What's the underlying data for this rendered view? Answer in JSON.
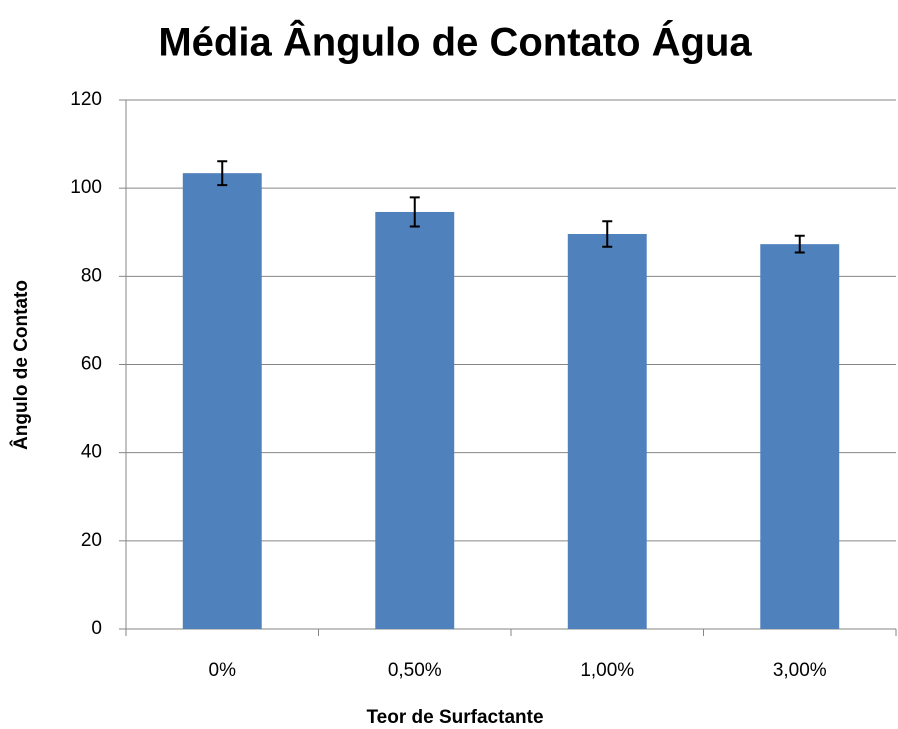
{
  "chart_data": {
    "type": "bar",
    "title": "Média Ângulo de Contato Água",
    "x_label": "Teor de Surfactante",
    "y_label": "Ângulo de Contato",
    "categories": [
      "0%",
      "0,50%",
      "1,00%",
      "3,00%"
    ],
    "values": [
      103.4,
      94.6,
      89.6,
      87.3
    ],
    "errors": [
      2.7,
      3.3,
      2.9,
      1.9
    ],
    "color": "#4f81bd",
    "ylim": [
      0,
      120
    ],
    "yticks": [
      0,
      20,
      40,
      60,
      80,
      100,
      120
    ],
    "grid": true
  }
}
